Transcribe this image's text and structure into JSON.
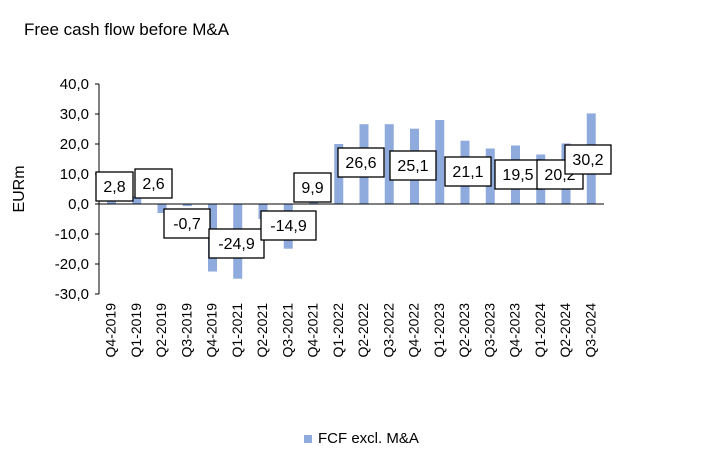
{
  "chart_data": {
    "type": "bar",
    "title": "Free cash flow before M&A",
    "xlabel": "",
    "ylabel": "EURm",
    "ylim": [
      -30,
      40
    ],
    "yticks": [
      40,
      30,
      20,
      10,
      0,
      -10,
      -20,
      -30
    ],
    "ytick_labels": [
      "40,0",
      "30,0",
      "20,0",
      "10,0",
      "0,0",
      "-10,0",
      "-20,0",
      "-30,0"
    ],
    "grid": false,
    "legend_position": "bottom",
    "categories": [
      "Q4-2019",
      "Q1-2019",
      "Q2-2019",
      "Q3-2019",
      "Q4-2019",
      "Q1-2021",
      "Q2-2021",
      "Q3-2021",
      "Q4-2021",
      "Q1-2022",
      "Q2-2022",
      "Q3-2022",
      "Q4-2022",
      "Q1-2023",
      "Q2-2023",
      "Q3-2023",
      "Q4-2023",
      "Q1-2024",
      "Q2-2024",
      "Q3-2024"
    ],
    "series": [
      {
        "name": "FCF excl. M&A",
        "color": "#8faadc",
        "values": [
          2.8,
          2.6,
          -3,
          -0.7,
          -22.5,
          -24.9,
          -5,
          -14.9,
          9.9,
          20,
          26.6,
          26.6,
          25.1,
          28,
          21.1,
          18.5,
          19.5,
          16.5,
          20.2,
          30.2
        ]
      }
    ],
    "annotations": [
      {
        "category": "Q4-2019",
        "label": "2,8"
      },
      {
        "category": "Q1-2019",
        "label": "2,6"
      },
      {
        "category": "Q3-2019",
        "label": "-0,7"
      },
      {
        "category": "Q1-2021",
        "label": "-24,9"
      },
      {
        "category": "Q3-2021",
        "label": "-14,9"
      },
      {
        "category": "Q4-2021",
        "label": "9,9"
      },
      {
        "category": "Q2-2022",
        "label": "26,6"
      },
      {
        "category": "Q4-2022",
        "label": "25,1"
      },
      {
        "category": "Q2-2023",
        "label": "21,1"
      },
      {
        "category": "Q4-2023",
        "label": "19,5"
      },
      {
        "category": "Q2-2024",
        "label": "20,2"
      },
      {
        "category": "Q3-2024",
        "label": "30,2"
      }
    ]
  }
}
